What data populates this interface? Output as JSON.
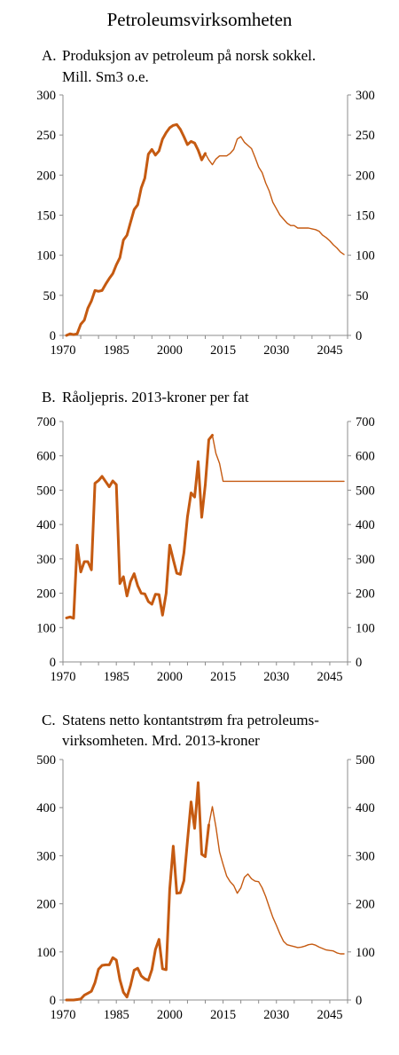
{
  "title": "Petroleumsvirksomheten",
  "series_color": "#c55a11",
  "chart_data": [
    {
      "type": "line",
      "letter": "A.",
      "title": [
        "Produksjon av petroleum på norsk sokkel.",
        "Mill. Sm3 o.e."
      ],
      "x_ticks": [
        "1970",
        "1985",
        "2000",
        "2015",
        "2030",
        "2045"
      ],
      "y_ticks": [
        "0",
        "50",
        "100",
        "150",
        "200",
        "250",
        "300"
      ],
      "xlim": [
        1970,
        2050
      ],
      "ylim": [
        0,
        300
      ],
      "secondary_y_axis": true,
      "grid": false,
      "series": [
        {
          "style": "thick",
          "points": [
            [
              1971,
              0
            ],
            [
              1972,
              2
            ],
            [
              1973,
              1
            ],
            [
              1974,
              2
            ],
            [
              1975,
              14
            ],
            [
              1976,
              19
            ],
            [
              1977,
              34
            ],
            [
              1978,
              43
            ],
            [
              1979,
              56
            ],
            [
              1980,
              55
            ],
            [
              1981,
              56
            ],
            [
              1982,
              64
            ],
            [
              1983,
              71
            ],
            [
              1984,
              77
            ],
            [
              1985,
              88
            ],
            [
              1986,
              97
            ],
            [
              1987,
              119
            ],
            [
              1988,
              125
            ],
            [
              1989,
              141
            ],
            [
              1990,
              157
            ],
            [
              1991,
              163
            ],
            [
              1992,
              184
            ],
            [
              1993,
              196
            ],
            [
              1994,
              226
            ],
            [
              1995,
              232
            ],
            [
              1996,
              225
            ],
            [
              1997,
              230
            ],
            [
              1998,
              245
            ],
            [
              1999,
              253
            ],
            [
              2000,
              259
            ],
            [
              2001,
              262
            ],
            [
              2002,
              263
            ],
            [
              2003,
              257
            ],
            [
              2004,
              248
            ],
            [
              2005,
              238
            ],
            [
              2006,
              242
            ],
            [
              2007,
              240
            ],
            [
              2008,
              231
            ],
            [
              2009,
              219
            ],
            [
              2010,
              227
            ]
          ]
        },
        {
          "style": "thin",
          "points": [
            [
              2010,
              227
            ],
            [
              2011,
              219
            ],
            [
              2012,
              213
            ],
            [
              2013,
              220
            ],
            [
              2014,
              224
            ],
            [
              2015,
              224
            ],
            [
              2016,
              224
            ],
            [
              2017,
              227
            ],
            [
              2018,
              232
            ],
            [
              2019,
              245
            ],
            [
              2020,
              248
            ],
            [
              2021,
              241
            ],
            [
              2022,
              237
            ],
            [
              2023,
              233
            ],
            [
              2024,
              222
            ],
            [
              2025,
              210
            ],
            [
              2026,
              203
            ],
            [
              2027,
              190
            ],
            [
              2028,
              180
            ],
            [
              2029,
              166
            ],
            [
              2030,
              158
            ],
            [
              2031,
              150
            ],
            [
              2032,
              145
            ],
            [
              2033,
              140
            ],
            [
              2034,
              137
            ],
            [
              2035,
              137
            ],
            [
              2036,
              134
            ],
            [
              2037,
              134
            ],
            [
              2038,
              134
            ],
            [
              2039,
              134
            ],
            [
              2040,
              133
            ],
            [
              2041,
              132
            ],
            [
              2042,
              130
            ],
            [
              2043,
              125
            ],
            [
              2044,
              122
            ],
            [
              2045,
              118
            ],
            [
              2046,
              113
            ],
            [
              2047,
              109
            ],
            [
              2048,
              104
            ],
            [
              2049,
              101
            ]
          ]
        }
      ]
    },
    {
      "type": "line",
      "letter": "B.",
      "title": [
        "Råoljepris. 2013-kroner per fat"
      ],
      "x_ticks": [
        "1970",
        "1985",
        "2000",
        "2015",
        "2030",
        "2045"
      ],
      "y_ticks": [
        "0",
        "100",
        "200",
        "300",
        "400",
        "500",
        "600",
        "700"
      ],
      "xlim": [
        1970,
        2050
      ],
      "ylim": [
        0,
        700
      ],
      "secondary_y_axis": true,
      "grid": false,
      "series": [
        {
          "style": "thick",
          "points": [
            [
              1971,
              128
            ],
            [
              1972,
              131
            ],
            [
              1973,
              127
            ],
            [
              1974,
              340
            ],
            [
              1975,
              262
            ],
            [
              1976,
              292
            ],
            [
              1977,
              292
            ],
            [
              1978,
              268
            ],
            [
              1979,
              520
            ],
            [
              1980,
              528
            ],
            [
              1981,
              540
            ],
            [
              1982,
              525
            ],
            [
              1983,
              510
            ],
            [
              1984,
              527
            ],
            [
              1985,
              516
            ],
            [
              1986,
              228
            ],
            [
              1987,
              248
            ],
            [
              1988,
              192
            ],
            [
              1989,
              234
            ],
            [
              1990,
              257
            ],
            [
              1991,
              222
            ],
            [
              1992,
              200
            ],
            [
              1993,
              198
            ],
            [
              1994,
              176
            ],
            [
              1995,
              168
            ],
            [
              1996,
              197
            ],
            [
              1997,
              196
            ],
            [
              1998,
              136
            ],
            [
              1999,
              200
            ],
            [
              2000,
              340
            ],
            [
              2001,
              298
            ],
            [
              2002,
              258
            ],
            [
              2003,
              255
            ],
            [
              2004,
              317
            ],
            [
              2005,
              422
            ],
            [
              2006,
              492
            ],
            [
              2007,
              480
            ],
            [
              2008,
              583
            ],
            [
              2009,
              421
            ],
            [
              2010,
              515
            ],
            [
              2011,
              647
            ],
            [
              2012,
              660
            ]
          ]
        },
        {
          "style": "thin",
          "points": [
            [
              2012,
              660
            ],
            [
              2013,
              607
            ],
            [
              2014,
              578
            ],
            [
              2015,
              526
            ],
            [
              2049,
              526
            ]
          ]
        }
      ]
    },
    {
      "type": "line",
      "letter": "C.",
      "title": [
        "Statens netto kontantstrøm fra petroleums-",
        "virksomheten. Mrd. 2013-kroner"
      ],
      "x_ticks": [
        "1970",
        "1985",
        "2000",
        "2015",
        "2030",
        "2045"
      ],
      "y_ticks": [
        "0",
        "100",
        "200",
        "300",
        "400",
        "500"
      ],
      "xlim": [
        1970,
        2050
      ],
      "ylim": [
        0,
        500
      ],
      "secondary_y_axis": true,
      "grid": false,
      "series": [
        {
          "style": "thick",
          "points": [
            [
              1971,
              0
            ],
            [
              1972,
              0
            ],
            [
              1973,
              0
            ],
            [
              1974,
              1
            ],
            [
              1975,
              2
            ],
            [
              1976,
              10
            ],
            [
              1977,
              14
            ],
            [
              1978,
              18
            ],
            [
              1979,
              36
            ],
            [
              1980,
              64
            ],
            [
              1981,
              72
            ],
            [
              1982,
              73
            ],
            [
              1983,
              73
            ],
            [
              1984,
              88
            ],
            [
              1985,
              83
            ],
            [
              1986,
              42
            ],
            [
              1987,
              16
            ],
            [
              1988,
              6
            ],
            [
              1989,
              30
            ],
            [
              1990,
              62
            ],
            [
              1991,
              66
            ],
            [
              1992,
              50
            ],
            [
              1993,
              44
            ],
            [
              1994,
              41
            ],
            [
              1995,
              63
            ],
            [
              1996,
              105
            ],
            [
              1997,
              126
            ],
            [
              1998,
              65
            ],
            [
              1999,
              63
            ],
            [
              2000,
              230
            ],
            [
              2001,
              320
            ],
            [
              2002,
              222
            ],
            [
              2003,
              223
            ],
            [
              2004,
              248
            ],
            [
              2005,
              330
            ],
            [
              2006,
              412
            ],
            [
              2007,
              357
            ],
            [
              2008,
              452
            ],
            [
              2009,
              303
            ],
            [
              2010,
              298
            ],
            [
              2011,
              364
            ]
          ]
        },
        {
          "style": "thin",
          "points": [
            [
              2011,
              364
            ],
            [
              2012,
              402
            ],
            [
              2013,
              360
            ],
            [
              2014,
              308
            ],
            [
              2015,
              282
            ],
            [
              2016,
              258
            ],
            [
              2017,
              246
            ],
            [
              2018,
              238
            ],
            [
              2019,
              222
            ],
            [
              2020,
              233
            ],
            [
              2021,
              255
            ],
            [
              2022,
              262
            ],
            [
              2023,
              252
            ],
            [
              2024,
              247
            ],
            [
              2025,
              246
            ],
            [
              2026,
              233
            ],
            [
              2027,
              215
            ],
            [
              2028,
              193
            ],
            [
              2029,
              172
            ],
            [
              2030,
              155
            ],
            [
              2031,
              137
            ],
            [
              2032,
              122
            ],
            [
              2033,
              115
            ],
            [
              2034,
              113
            ],
            [
              2035,
              111
            ],
            [
              2036,
              109
            ],
            [
              2037,
              110
            ],
            [
              2038,
              112
            ],
            [
              2039,
              115
            ],
            [
              2040,
              116
            ],
            [
              2041,
              114
            ],
            [
              2042,
              110
            ],
            [
              2043,
              107
            ],
            [
              2044,
              104
            ],
            [
              2045,
              103
            ],
            [
              2046,
              102
            ],
            [
              2047,
              98
            ],
            [
              2048,
              96
            ],
            [
              2049,
              96
            ]
          ]
        }
      ]
    }
  ]
}
